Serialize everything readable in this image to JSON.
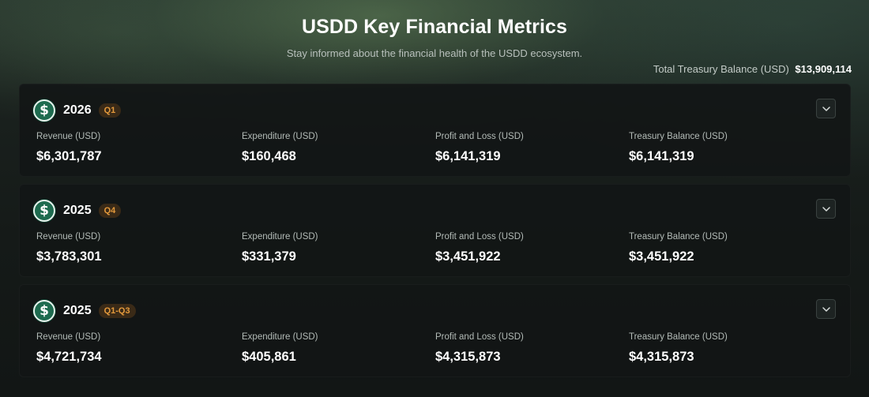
{
  "header": {
    "title": "USDD Key Financial Metrics",
    "subtitle": "Stay informed about the financial health of the USDD ecosystem.",
    "total_treasury_label": "Total Treasury Balance (USD)",
    "total_treasury_value": "$13,909,114"
  },
  "icons": {
    "coin": "usdd-coin-icon",
    "toggle": "chevron-down-icon"
  },
  "colors": {
    "coin_green": "#1e6b4f",
    "quarter_text": "#e49a3c",
    "quarter_bg": "#3a2a17"
  },
  "labels": {
    "revenue": "Revenue (USD)",
    "expenditure": "Expenditure (USD)",
    "pnl": "Profit and Loss (USD)",
    "treasury": "Treasury Balance (USD)"
  },
  "periods": [
    {
      "year": "2026",
      "quarter": "Q1",
      "revenue": "$6,301,787",
      "expenditure": "$160,468",
      "pnl": "$6,141,319",
      "treasury": "$6,141,319"
    },
    {
      "year": "2025",
      "quarter": "Q4",
      "revenue": "$3,783,301",
      "expenditure": "$331,379",
      "pnl": "$3,451,922",
      "treasury": "$3,451,922"
    },
    {
      "year": "2025",
      "quarter": "Q1-Q3",
      "revenue": "$4,721,734",
      "expenditure": "$405,861",
      "pnl": "$4,315,873",
      "treasury": "$4,315,873"
    }
  ]
}
